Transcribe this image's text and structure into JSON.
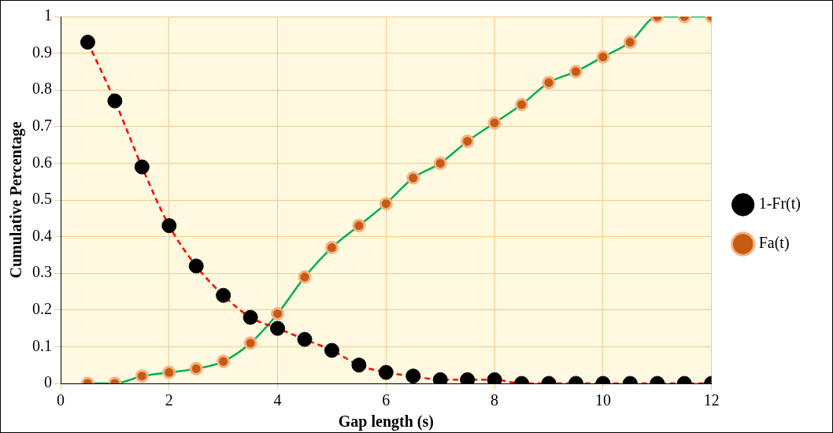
{
  "chart_data": {
    "type": "line",
    "xlabel": "Gap length (s)",
    "ylabel": "Cumulative Percentage",
    "x": [
      0.5,
      1,
      1.5,
      2,
      2.5,
      3,
      3.5,
      4,
      4.5,
      5,
      5.5,
      6,
      6.5,
      7,
      7.5,
      8,
      8.5,
      9,
      9.5,
      10,
      10.5,
      11,
      11.5,
      12
    ],
    "series": [
      {
        "name": "1-Fr(t)",
        "color": "#ff0000",
        "line_style": "dashed",
        "values": [
          0.93,
          0.77,
          0.59,
          0.43,
          0.32,
          0.24,
          0.18,
          0.15,
          0.12,
          0.09,
          0.05,
          0.03,
          0.02,
          0.01,
          0.01,
          0.01,
          0,
          0,
          0,
          0,
          0,
          0,
          0,
          0
        ]
      },
      {
        "name": "Fa(t)",
        "color": "#00b050",
        "line_style": "solid",
        "values": [
          0,
          0,
          0.02,
          0.03,
          0.04,
          0.06,
          0.11,
          0.19,
          0.29,
          0.37,
          0.43,
          0.49,
          0.56,
          0.6,
          0.66,
          0.71,
          0.76,
          0.82,
          0.85,
          0.89,
          0.93,
          1,
          1,
          1
        ]
      }
    ],
    "xlim": [
      0,
      12
    ],
    "xticks": [
      0,
      2,
      4,
      6,
      8,
      10,
      12
    ],
    "ylim": [
      0,
      1
    ],
    "yticks": [
      0,
      0.1,
      0.2,
      0.3,
      0.4,
      0.5,
      0.6,
      0.7,
      0.8,
      0.9,
      1
    ],
    "grid": true,
    "legend": "right",
    "marker": "circle"
  }
}
